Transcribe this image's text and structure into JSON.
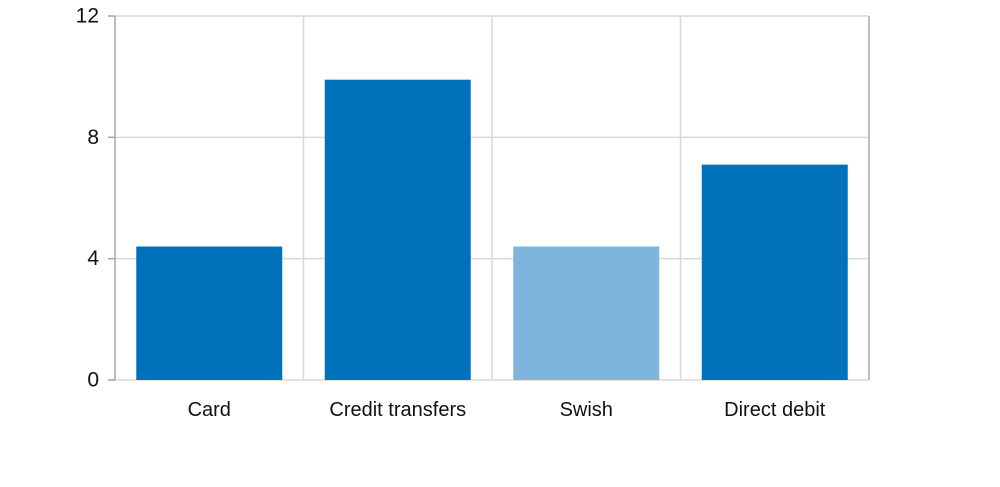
{
  "chart_data": {
    "type": "bar",
    "title": "",
    "xlabel": "",
    "ylabel": "",
    "categories": [
      "Card",
      "Credit transfers",
      "Swish",
      "Direct debit"
    ],
    "values": [
      4.4,
      9.9,
      4.4,
      7.1
    ],
    "bar_colors": [
      "#0072BC",
      "#0072BC",
      "#7EB5DC",
      "#0072BC"
    ],
    "highlighted_category": "Swish",
    "ylim": [
      0,
      12
    ],
    "yticks": [
      0,
      4,
      8,
      12
    ],
    "grid": true,
    "legend": "none"
  },
  "colors": {
    "bar_primary": "#0072BC",
    "bar_highlight": "#7EB5DC",
    "gridline": "#D9D9D9",
    "axis_line": "#A6A6A6",
    "tick_mark": "#A6A6A6",
    "label_text": "#111111",
    "background": "#FFFFFF"
  }
}
